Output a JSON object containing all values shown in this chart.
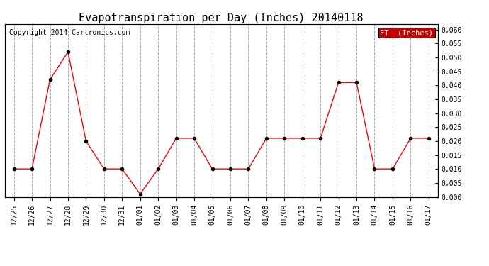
{
  "title": "Evapotranspiration per Day (Inches) 20140118",
  "copyright": "Copyright 2014 Cartronics.com",
  "legend_label": "ET  (Inches)",
  "legend_bg": "#cc0000",
  "legend_text_color": "#ffffff",
  "x_labels": [
    "12/25",
    "12/26",
    "12/27",
    "12/28",
    "12/29",
    "12/30",
    "12/31",
    "01/01",
    "01/02",
    "01/03",
    "01/04",
    "01/05",
    "01/06",
    "01/07",
    "01/08",
    "01/09",
    "01/10",
    "01/11",
    "01/12",
    "01/13",
    "01/14",
    "01/15",
    "01/16",
    "01/17"
  ],
  "y_values": [
    0.01,
    0.01,
    0.042,
    0.052,
    0.02,
    0.01,
    0.01,
    0.001,
    0.01,
    0.021,
    0.021,
    0.01,
    0.01,
    0.01,
    0.021,
    0.021,
    0.021,
    0.021,
    0.041,
    0.041,
    0.01,
    0.01,
    0.021,
    0.021
  ],
  "line_color": "#ff0000",
  "marker": "o",
  "marker_color": "#000000",
  "marker_size": 3,
  "ylim": [
    0.0,
    0.062
  ],
  "yticks": [
    0.0,
    0.005,
    0.01,
    0.015,
    0.02,
    0.025,
    0.03,
    0.035,
    0.04,
    0.045,
    0.05,
    0.055,
    0.06
  ],
  "grid_color": "#aaaaaa",
  "grid_style": "--",
  "bg_color": "#ffffff",
  "title_fontsize": 11,
  "copyright_fontsize": 7,
  "tick_fontsize": 7,
  "legend_fontsize": 7.5
}
